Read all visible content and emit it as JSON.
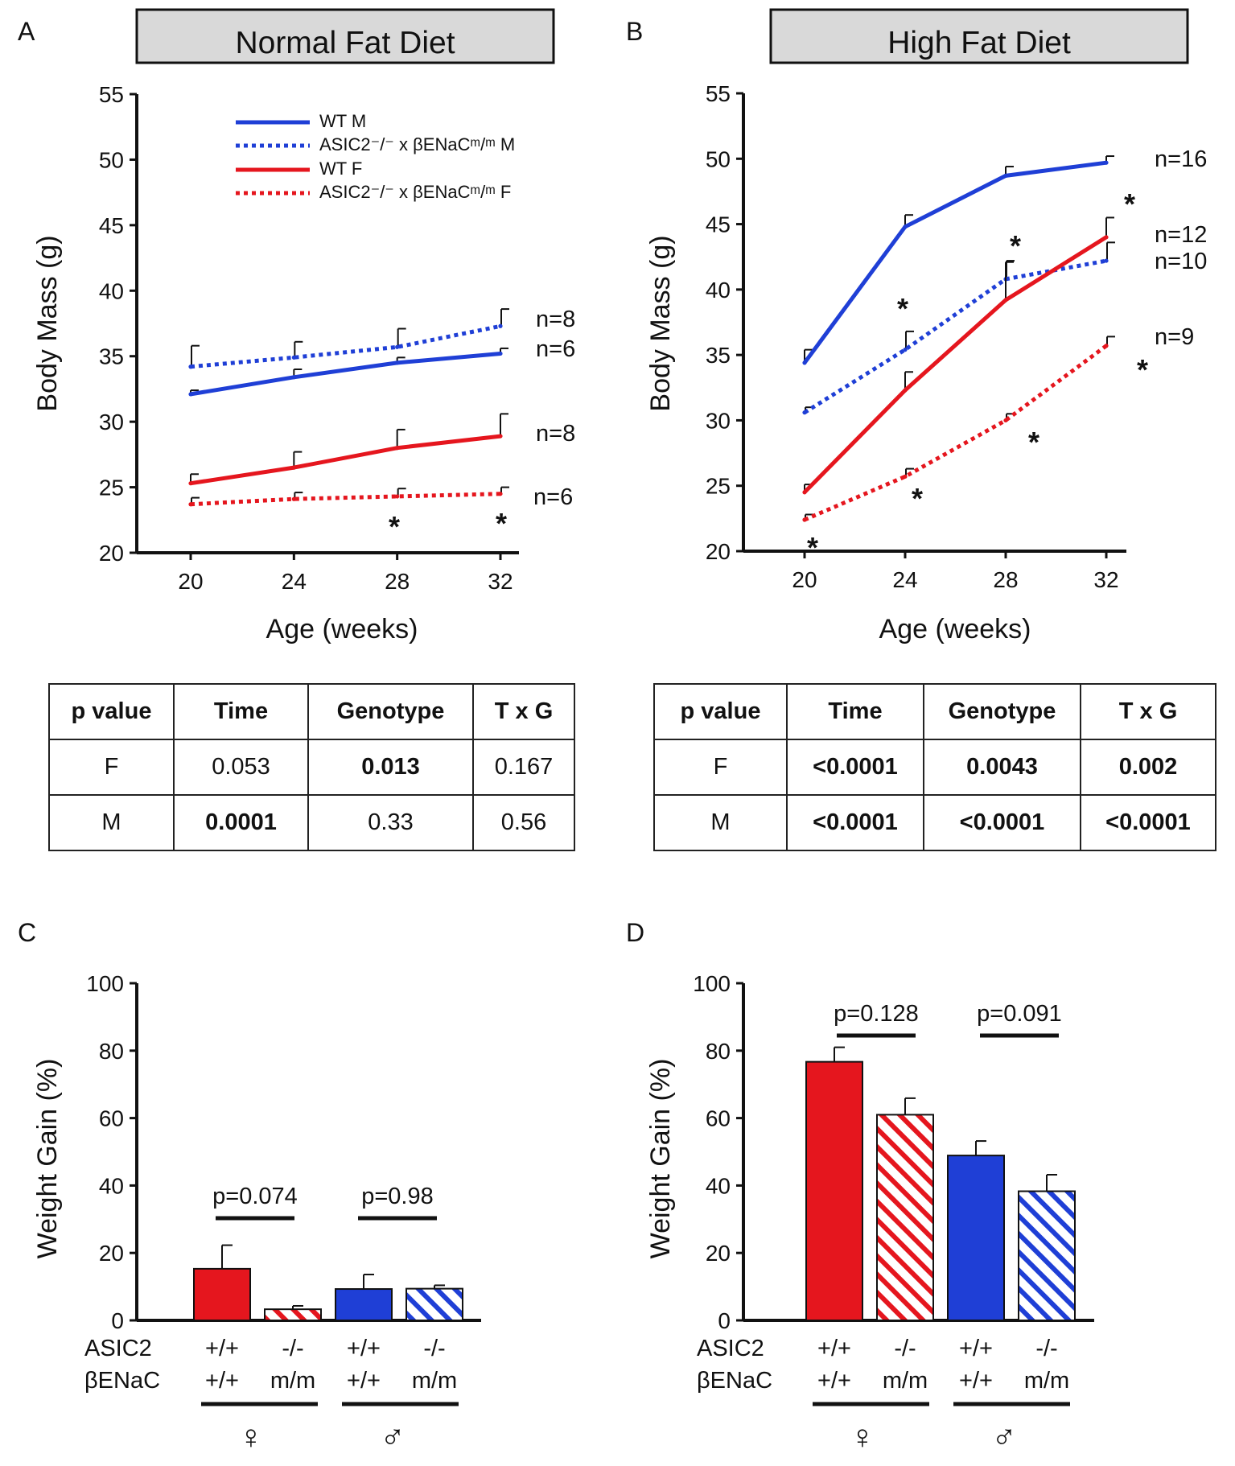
{
  "panels": {
    "A": {
      "letter": "A",
      "title": "Normal Fat Diet",
      "ylabel": "Body Mass (g)",
      "xlabel": "Age (weeks)",
      "yticks": [
        "20",
        "25",
        "30",
        "35",
        "40",
        "45",
        "50",
        "55"
      ],
      "xticks": [
        "20",
        "24",
        "28",
        "32"
      ],
      "legend": [
        {
          "label": "WT M",
          "color": "#1f3fd6",
          "dashed": false
        },
        {
          "label": "ASIC2⁻/⁻ x βENaCᵐ/ᵐ M",
          "color": "#1f3fd6",
          "dashed": true
        },
        {
          "label": "WT F",
          "color": "#e5161e",
          "dashed": false
        },
        {
          "label": "ASIC2⁻/⁻ x βENaCᵐ/ᵐ F",
          "color": "#e5161e",
          "dashed": true
        }
      ],
      "n_labels": [
        "n=8",
        "n=6",
        "n=8",
        "n=6"
      ],
      "asterisk": "*"
    },
    "B": {
      "letter": "B",
      "title": "High Fat Diet",
      "ylabel": "Body Mass (g)",
      "xlabel": "Age (weeks)",
      "yticks": [
        "20",
        "25",
        "30",
        "35",
        "40",
        "45",
        "50",
        "55"
      ],
      "xticks": [
        "20",
        "24",
        "28",
        "32"
      ],
      "n_labels": [
        "n=16",
        "n=12",
        "n=10",
        "n=9"
      ],
      "asterisk": "*"
    },
    "C": {
      "letter": "C",
      "ylabel": "Weight Gain (%)",
      "yticks": [
        "0",
        "20",
        "40",
        "60",
        "80",
        "100"
      ],
      "p_values": [
        "p=0.074",
        "p=0.98"
      ],
      "row_labels": [
        "ASIC2",
        "βENaC"
      ],
      "asic2_genotypes": [
        "+/+",
        "-/-",
        "+/+",
        "-/-"
      ],
      "benac_genotypes": [
        "+/+",
        "m/m",
        "+/+",
        "m/m"
      ],
      "sex_symbols": [
        "♀",
        "♂"
      ]
    },
    "D": {
      "letter": "D",
      "ylabel": "Weight Gain (%)",
      "yticks": [
        "0",
        "20",
        "40",
        "60",
        "80",
        "100"
      ],
      "p_values": [
        "p=0.128",
        "p=0.091"
      ],
      "row_labels": [
        "ASIC2",
        "βENaC"
      ],
      "asic2_genotypes": [
        "+/+",
        "-/-",
        "+/+",
        "-/-"
      ],
      "benac_genotypes": [
        "+/+",
        "m/m",
        "+/+",
        "m/m"
      ],
      "sex_symbols": [
        "♀",
        "♂"
      ]
    }
  },
  "tables": {
    "A": {
      "header": [
        "p value",
        "Time",
        "Genotype",
        "T x G"
      ],
      "rows": [
        [
          "F",
          "0.053",
          "0.013",
          "0.167"
        ],
        [
          "M",
          "0.0001",
          "0.33",
          "0.56"
        ]
      ]
    },
    "B": {
      "header": [
        "p value",
        "Time",
        "Genotype",
        "T x G"
      ],
      "rows": [
        [
          "F",
          "<0.0001",
          "0.0043",
          "0.002"
        ],
        [
          "M",
          "<0.0001",
          "<0.0001",
          "<0.0001"
        ]
      ]
    }
  },
  "colors": {
    "blue": "#1f3fd6",
    "red": "#e5161e",
    "title_box": "#d9d9d9"
  },
  "chart_data": [
    {
      "type": "line",
      "title": "Normal Fat Diet",
      "xlabel": "Age (weeks)",
      "ylabel": "Body Mass (g)",
      "x": [
        20,
        24,
        28,
        32
      ],
      "ylim": [
        20,
        55
      ],
      "series": [
        {
          "name": "WT M",
          "style": "solid",
          "color": "blue",
          "values": [
            32.1,
            33.4,
            34.5,
            35.2
          ],
          "errors": [
            0.3,
            0.6,
            0.4,
            0.4
          ],
          "n": "n=6",
          "sig": [
            false,
            false,
            false,
            false
          ]
        },
        {
          "name": "ASIC2-/- x βENaC m/m M",
          "style": "dotted",
          "color": "blue",
          "values": [
            34.2,
            34.9,
            35.7,
            37.3
          ],
          "errors": [
            1.6,
            1.2,
            1.4,
            1.3
          ],
          "n": "n=8",
          "sig": [
            false,
            false,
            false,
            false
          ]
        },
        {
          "name": "WT F",
          "style": "solid",
          "color": "red",
          "values": [
            25.3,
            26.5,
            28.0,
            28.9
          ],
          "errors": [
            0.7,
            1.2,
            1.4,
            1.7
          ],
          "n": "n=8",
          "sig": [
            false,
            false,
            false,
            false
          ]
        },
        {
          "name": "ASIC2-/- x βENaC m/m F",
          "style": "dotted",
          "color": "red",
          "values": [
            23.7,
            24.1,
            24.3,
            24.5
          ],
          "errors": [
            0.5,
            0.5,
            0.6,
            0.5
          ],
          "n": "n=6",
          "sig": [
            false,
            false,
            true,
            true
          ]
        }
      ]
    },
    {
      "type": "line",
      "title": "High Fat Diet",
      "xlabel": "Age (weeks)",
      "ylabel": "Body Mass (g)",
      "x": [
        20,
        24,
        28,
        32
      ],
      "ylim": [
        20,
        55
      ],
      "series": [
        {
          "name": "WT M",
          "style": "solid",
          "color": "blue",
          "values": [
            34.4,
            44.8,
            48.7,
            49.7
          ],
          "errors": [
            1.0,
            0.9,
            0.7,
            0.5
          ],
          "n": "n=16",
          "sig": [
            false,
            false,
            false,
            false
          ]
        },
        {
          "name": "ASIC2-/- x βENaC m/m M",
          "style": "dotted",
          "color": "blue",
          "values": [
            30.6,
            35.4,
            40.8,
            42.2
          ],
          "errors": [
            0.4,
            1.4,
            1.4,
            1.4
          ],
          "n": "n=10",
          "sig": [
            false,
            true,
            true,
            false
          ]
        },
        {
          "name": "WT F",
          "style": "solid",
          "color": "red",
          "values": [
            24.5,
            32.3,
            39.2,
            44.0
          ],
          "errors": [
            0.6,
            1.4,
            2.9,
            1.5
          ],
          "n": "n=12",
          "sig": [
            false,
            false,
            false,
            true
          ]
        },
        {
          "name": "ASIC2-/- x βENaC m/m F",
          "style": "dotted",
          "color": "red",
          "values": [
            22.4,
            25.7,
            30.0,
            35.7
          ],
          "errors": [
            0.4,
            0.6,
            0.5,
            0.7
          ],
          "n": "n=9",
          "sig": [
            true,
            true,
            true,
            true
          ]
        }
      ]
    },
    {
      "type": "bar",
      "ylabel": "Weight Gain (%)",
      "ylim": [
        0,
        100
      ],
      "categories": [
        "F +/+ +/+",
        "F -/- m/m",
        "M +/+ +/+",
        "M -/- m/m"
      ],
      "values": [
        15.3,
        3.3,
        9.3,
        9.4
      ],
      "errors": [
        7.0,
        1.0,
        4.3,
        1.0
      ],
      "colors": [
        "red",
        "red",
        "blue",
        "blue"
      ],
      "hatched": [
        false,
        true,
        false,
        true
      ],
      "comparisons": [
        {
          "bars": [
            0,
            1
          ],
          "label": "p=0.074"
        },
        {
          "bars": [
            2,
            3
          ],
          "label": "p=0.98"
        }
      ]
    },
    {
      "type": "bar",
      "ylabel": "Weight Gain (%)",
      "ylim": [
        0,
        100
      ],
      "categories": [
        "F +/+ +/+",
        "F -/- m/m",
        "M +/+ +/+",
        "M -/- m/m"
      ],
      "values": [
        76.7,
        61.0,
        48.9,
        38.3
      ],
      "errors": [
        4.3,
        4.9,
        4.3,
        4.9
      ],
      "colors": [
        "red",
        "red",
        "blue",
        "blue"
      ],
      "hatched": [
        false,
        true,
        false,
        true
      ],
      "comparisons": [
        {
          "bars": [
            0,
            1
          ],
          "label": "p=0.128"
        },
        {
          "bars": [
            2,
            3
          ],
          "label": "p=0.091"
        }
      ]
    }
  ]
}
